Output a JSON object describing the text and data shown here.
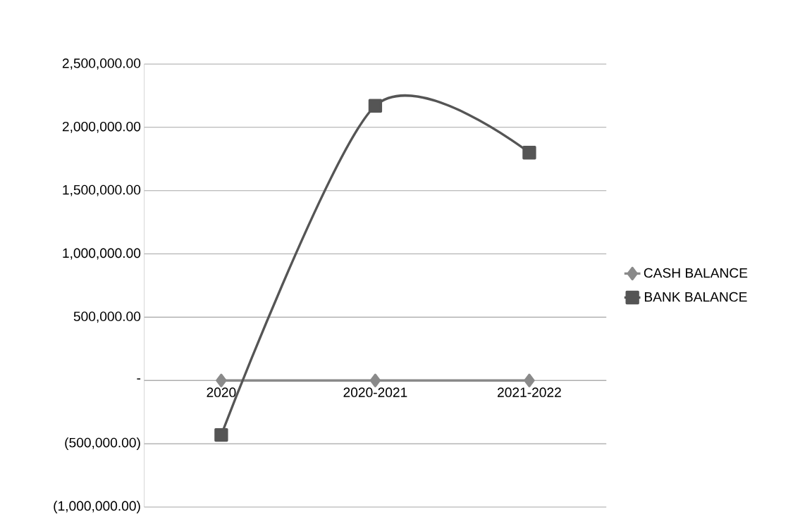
{
  "chart_data": {
    "type": "line",
    "categories": [
      "2020",
      "2020-2021",
      "2021-2022"
    ],
    "series": [
      {
        "name": "CASH BALANCE",
        "color": "#8a8a8a",
        "values": [
          0,
          0,
          0
        ],
        "marker": "diamond"
      },
      {
        "name": "BANK BALANCE",
        "color": "#555555",
        "values": [
          -430000,
          2170000,
          1800000
        ],
        "marker": "square"
      }
    ],
    "ylim": [
      -1000000,
      2500000
    ],
    "yticks": [
      {
        "value": -1000000,
        "label": "(1,000,000.00)"
      },
      {
        "value": -500000,
        "label": "(500,000.00)"
      },
      {
        "value": 0,
        "label": "-"
      },
      {
        "value": 500000,
        "label": "500,000.00"
      },
      {
        "value": 1000000,
        "label": "1,000,000.00"
      },
      {
        "value": 1500000,
        "label": "1,500,000.00"
      },
      {
        "value": 2000000,
        "label": "2,000,000.00"
      },
      {
        "value": 2500000,
        "label": "2,500,000.00"
      }
    ],
    "grid": "y",
    "legend": "right"
  }
}
